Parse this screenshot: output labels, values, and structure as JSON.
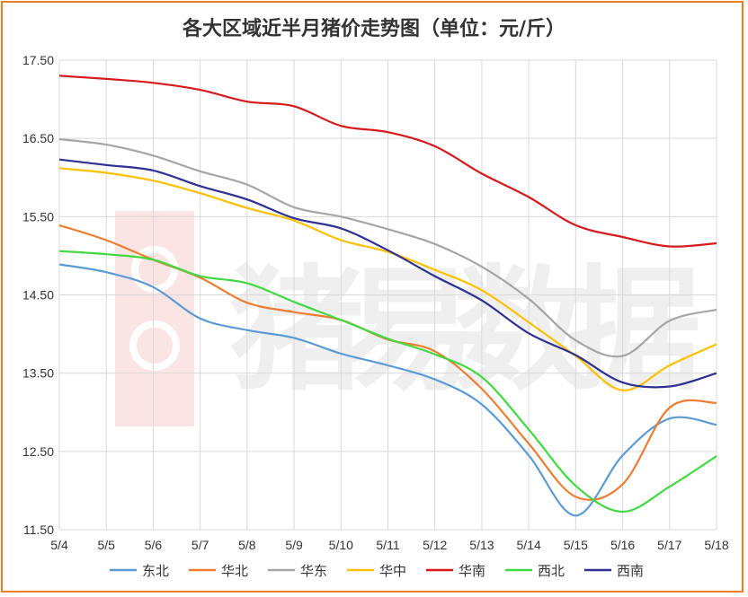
{
  "chart_data": {
    "type": "line",
    "title": "各大区域近半月猪价走势图（单位：元/斤）",
    "watermark": "猪易数据",
    "categories": [
      "5/4",
      "5/5",
      "5/6",
      "5/7",
      "5/8",
      "5/9",
      "5/10",
      "5/11",
      "5/12",
      "5/13",
      "5/14",
      "5/15",
      "5/16",
      "5/17",
      "5/18"
    ],
    "ylim": [
      11.5,
      17.5
    ],
    "yticks": [
      "11.50",
      "12.50",
      "13.50",
      "14.50",
      "15.50",
      "16.50",
      "17.50"
    ],
    "grid": true,
    "legend_position": "bottom",
    "series": [
      {
        "name": "东北",
        "color": "#5b9bd5",
        "values": [
          14.89,
          14.79,
          14.6,
          14.2,
          14.05,
          13.95,
          13.75,
          13.6,
          13.42,
          13.1,
          12.45,
          11.68,
          12.45,
          12.92,
          12.84
        ]
      },
      {
        "name": "华北",
        "color": "#ed7d31",
        "values": [
          15.39,
          15.2,
          14.95,
          14.72,
          14.4,
          14.28,
          14.18,
          13.93,
          13.78,
          13.3,
          12.6,
          11.92,
          12.08,
          13.06,
          13.12
        ]
      },
      {
        "name": "华东",
        "color": "#a5a5a5",
        "values": [
          16.49,
          16.42,
          16.28,
          16.08,
          15.91,
          15.62,
          15.5,
          15.34,
          15.15,
          14.86,
          14.45,
          13.92,
          13.72,
          14.17,
          14.31
        ]
      },
      {
        "name": "华中",
        "color": "#ffc000",
        "values": [
          16.12,
          16.06,
          15.96,
          15.8,
          15.61,
          15.45,
          15.2,
          15.05,
          14.82,
          14.56,
          14.15,
          13.72,
          13.28,
          13.6,
          13.87
        ]
      },
      {
        "name": "华南",
        "color": "#d7191c",
        "values": [
          17.3,
          17.26,
          17.21,
          17.12,
          16.97,
          16.91,
          16.66,
          16.58,
          16.4,
          16.05,
          15.75,
          15.39,
          15.24,
          15.12,
          15.16
        ]
      },
      {
        "name": "西北",
        "color": "#42d842",
        "values": [
          15.06,
          15.02,
          14.95,
          14.74,
          14.65,
          14.41,
          14.18,
          13.94,
          13.74,
          13.45,
          12.78,
          12.06,
          11.73,
          12.05,
          12.44
        ]
      },
      {
        "name": "西南",
        "color": "#2e3094",
        "values": [
          16.23,
          16.16,
          16.09,
          15.89,
          15.72,
          15.48,
          15.35,
          15.07,
          14.74,
          14.43,
          14.01,
          13.73,
          13.38,
          13.33,
          13.5
        ]
      }
    ]
  }
}
